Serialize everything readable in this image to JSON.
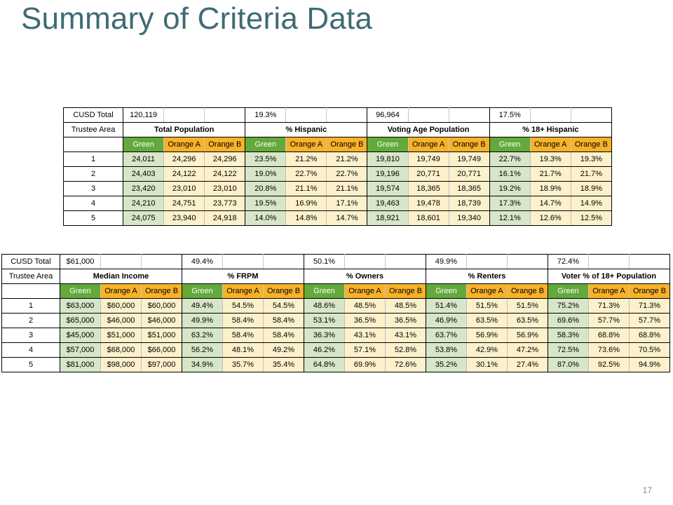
{
  "slide": {
    "title": "Summary of Criteria Data",
    "page_number": "17"
  },
  "table1": {
    "row_labels": {
      "total": "CUSD Total",
      "area": "Trustee Area"
    },
    "plans": [
      "Green",
      "Orange A",
      "Orange B"
    ],
    "groups": [
      {
        "total": "120,119",
        "title": "Total Population"
      },
      {
        "total": "19.3%",
        "title": "% Hispanic"
      },
      {
        "total": "96,964",
        "title": "Voting Age Population"
      },
      {
        "total": "17.5%",
        "title": "% 18+ Hispanic"
      }
    ],
    "rows": [
      {
        "area": "1",
        "values": [
          "24,011",
          "24,296",
          "24,296",
          "23.5%",
          "21.2%",
          "21.2%",
          "19,810",
          "19,749",
          "19,749",
          "22.7%",
          "19.3%",
          "19.3%"
        ]
      },
      {
        "area": "2",
        "values": [
          "24,403",
          "24,122",
          "24,122",
          "19.0%",
          "22.7%",
          "22.7%",
          "19,196",
          "20,771",
          "20,771",
          "16.1%",
          "21.7%",
          "21.7%"
        ]
      },
      {
        "area": "3",
        "values": [
          "23,420",
          "23,010",
          "23,010",
          "20.8%",
          "21.1%",
          "21.1%",
          "19,574",
          "18,365",
          "18,365",
          "19.2%",
          "18.9%",
          "18.9%"
        ]
      },
      {
        "area": "4",
        "values": [
          "24,210",
          "24,751",
          "23,773",
          "19.5%",
          "16.9%",
          "17.1%",
          "19,463",
          "19,478",
          "18,739",
          "17.3%",
          "14.7%",
          "14.9%"
        ]
      },
      {
        "area": "5",
        "values": [
          "24,075",
          "23,940",
          "24,918",
          "14.0%",
          "14.8%",
          "14.7%",
          "18,921",
          "18,601",
          "19,340",
          "12.1%",
          "12.6%",
          "12.5%"
        ]
      }
    ]
  },
  "table2": {
    "row_labels": {
      "total": "CUSD Total",
      "area": "Trustee Area"
    },
    "plans": [
      "Green",
      "Orange A",
      "Orange B"
    ],
    "groups": [
      {
        "total": "$61,000",
        "title": "Median Income"
      },
      {
        "total": "49.4%",
        "title": "% FRPM"
      },
      {
        "total": "50.1%",
        "title": "% Owners"
      },
      {
        "total": "49.9%",
        "title": "% Renters"
      },
      {
        "total": "72.4%",
        "title": "Voter % of 18+ Population"
      }
    ],
    "rows": [
      {
        "area": "1",
        "values": [
          "$63,000",
          "$60,000",
          "$60,000",
          "49.4%",
          "54.5%",
          "54.5%",
          "48.6%",
          "48.5%",
          "48.5%",
          "51.4%",
          "51.5%",
          "51.5%",
          "75.2%",
          "71.3%",
          "71.3%"
        ]
      },
      {
        "area": "2",
        "values": [
          "$65,000",
          "$46,000",
          "$46,000",
          "49.9%",
          "58.4%",
          "58.4%",
          "53.1%",
          "36.5%",
          "36.5%",
          "46.9%",
          "63.5%",
          "63.5%",
          "69.6%",
          "57.7%",
          "57.7%"
        ]
      },
      {
        "area": "3",
        "values": [
          "$45,000",
          "$51,000",
          "$51,000",
          "63.2%",
          "58.4%",
          "58.4%",
          "36.3%",
          "43.1%",
          "43.1%",
          "63.7%",
          "56.9%",
          "56.9%",
          "58.3%",
          "68.8%",
          "68.8%"
        ]
      },
      {
        "area": "4",
        "values": [
          "$57,000",
          "$68,000",
          "$66,000",
          "56.2%",
          "48.1%",
          "49.2%",
          "46.2%",
          "57.1%",
          "52.8%",
          "53.8%",
          "42.9%",
          "47.2%",
          "72.5%",
          "73.6%",
          "70.5%"
        ]
      },
      {
        "area": "5",
        "values": [
          "$81,000",
          "$98,000",
          "$97,000",
          "34.9%",
          "35.7%",
          "35.4%",
          "64.8%",
          "69.9%",
          "72.6%",
          "35.2%",
          "30.1%",
          "27.4%",
          "87.0%",
          "92.5%",
          "94.9%"
        ]
      }
    ]
  },
  "colors": {
    "title": "#3e6b75",
    "green_header": "#63a93b",
    "orange_header": "#f7b22a",
    "green_cell": "#d7e6c8",
    "orange_cell": "#fdf1cc"
  }
}
